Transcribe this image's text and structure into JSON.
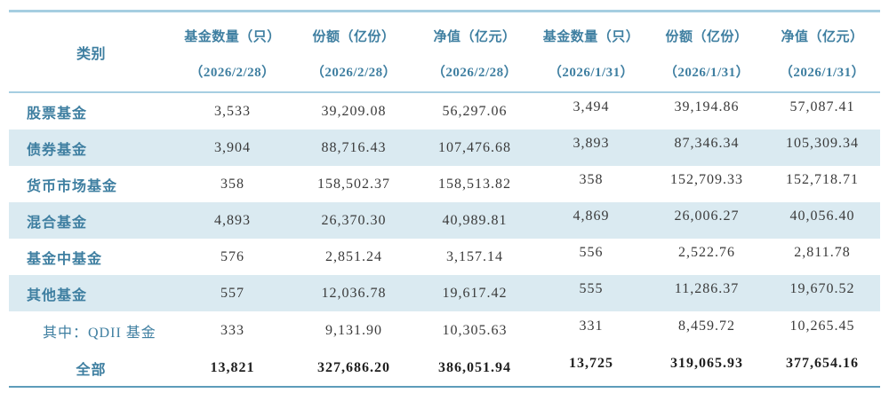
{
  "colors": {
    "accent_text": "#3f7fa1",
    "band_fill": "#daeaf1",
    "border_light": "#a6cee1",
    "border_bottom": "#5d9cba",
    "number_text": "#3a3a3a"
  },
  "table": {
    "category_header": "类别",
    "columns": [
      {
        "label": "基金数量（只）",
        "date": "（2026/2/28）"
      },
      {
        "label": "份额（亿份）",
        "date": "（2026/2/28）"
      },
      {
        "label": "净值（亿元）",
        "date": "（2026/2/28）"
      },
      {
        "label": "基金数量（只）",
        "date": "（2026/1/31）"
      },
      {
        "label": "份额（亿份）",
        "date": "（2026/1/31）"
      },
      {
        "label": "净值（亿元）",
        "date": "（2026/1/31）"
      }
    ],
    "rows": [
      {
        "category": "股票基金",
        "values": [
          "3,533",
          "39,209.08",
          "56,297.06",
          "3,494",
          "39,194.86",
          "57,087.41"
        ],
        "shaded": false,
        "style": "normal"
      },
      {
        "category": "债券基金",
        "values": [
          "3,904",
          "88,716.43",
          "107,476.68",
          "3,893",
          "87,346.34",
          "105,309.34"
        ],
        "shaded": true,
        "style": "normal"
      },
      {
        "category": "货币市场基金",
        "values": [
          "358",
          "158,502.37",
          "158,513.82",
          "358",
          "152,709.33",
          "152,718.71"
        ],
        "shaded": false,
        "style": "normal"
      },
      {
        "category": "混合基金",
        "values": [
          "4,893",
          "26,370.30",
          "40,989.81",
          "4,869",
          "26,006.27",
          "40,056.40"
        ],
        "shaded": true,
        "style": "normal"
      },
      {
        "category": "基金中基金",
        "values": [
          "576",
          "2,851.24",
          "3,157.14",
          "556",
          "2,522.76",
          "2,811.78"
        ],
        "shaded": false,
        "style": "normal"
      },
      {
        "category": "其他基金",
        "values": [
          "557",
          "12,036.78",
          "19,617.42",
          "555",
          "11,286.37",
          "19,670.52"
        ],
        "shaded": true,
        "style": "normal"
      },
      {
        "category": "其中：QDII 基金",
        "values": [
          "333",
          "9,131.90",
          "10,305.63",
          "331",
          "8,459.72",
          "10,265.45"
        ],
        "shaded": false,
        "style": "qdii"
      },
      {
        "category": "全部",
        "values": [
          "13,821",
          "327,686.20",
          "386,051.94",
          "13,725",
          "319,065.93",
          "377,654.16"
        ],
        "shaded": false,
        "style": "total"
      }
    ]
  }
}
